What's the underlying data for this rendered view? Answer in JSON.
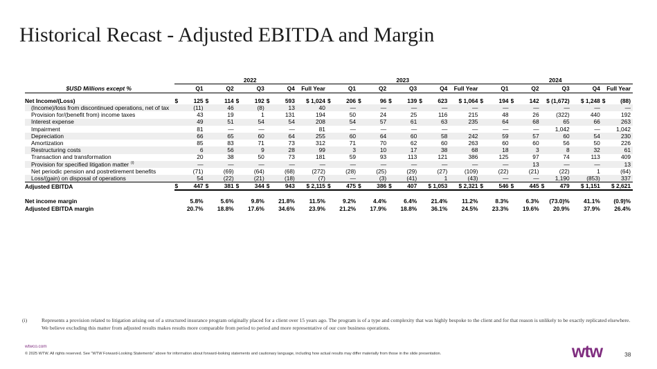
{
  "title": "Historical Recast - Adjusted EBITDA and Margin",
  "table": {
    "header_label": "$USD Millions except %",
    "years": [
      "2022",
      "2023",
      "2024"
    ],
    "quarters": [
      "Q1",
      "Q2",
      "Q3",
      "Q4",
      "Full Year",
      "Q1",
      "Q2",
      "Q3",
      "Q4",
      "Full Year",
      "Q1",
      "Q2",
      "Q3",
      "Q4",
      "Full Year"
    ],
    "rows": [
      {
        "label": "Net Income/(Loss)",
        "values": [
          "$|125",
          "$|114",
          "$|192",
          "$|593",
          "$ 1,024",
          "$|206",
          "$|96",
          "$|139",
          "$|623",
          "$ 1,064",
          "$|194",
          "$|142",
          "$ (1,672)",
          "$ 1,248",
          "$|(88)"
        ]
      },
      {
        "label": "(Income)/loss from discontinued operations, net of tax",
        "values": [
          "(11)",
          "46",
          "(8)",
          "13",
          "40",
          "—",
          "—",
          "—",
          "—",
          "—",
          "—",
          "—",
          "—",
          "—",
          "—"
        ]
      },
      {
        "label": "Provision for/(benefit from) income taxes",
        "values": [
          "43",
          "19",
          "1",
          "131",
          "194",
          "50",
          "24",
          "25",
          "116",
          "215",
          "48",
          "26",
          "(322)",
          "440",
          "192"
        ]
      },
      {
        "label": "Interest expense",
        "values": [
          "49",
          "51",
          "54",
          "54",
          "208",
          "54",
          "57",
          "61",
          "63",
          "235",
          "64",
          "68",
          "65",
          "66",
          "263"
        ]
      },
      {
        "label": "Impairment",
        "values": [
          "81",
          "—",
          "—",
          "—",
          "81",
          "—",
          "—",
          "—",
          "—",
          "—",
          "—",
          "—",
          "1,042",
          "—",
          "1,042"
        ]
      },
      {
        "label": "Depreciation",
        "values": [
          "66",
          "65",
          "60",
          "64",
          "255",
          "60",
          "64",
          "60",
          "58",
          "242",
          "59",
          "57",
          "60",
          "54",
          "230"
        ]
      },
      {
        "label": "Amortization",
        "values": [
          "85",
          "83",
          "71",
          "73",
          "312",
          "71",
          "70",
          "62",
          "60",
          "263",
          "60",
          "60",
          "56",
          "50",
          "226"
        ]
      },
      {
        "label": "Restructuring costs",
        "values": [
          "6",
          "56",
          "9",
          "28",
          "99",
          "3",
          "10",
          "17",
          "38",
          "68",
          "18",
          "3",
          "8",
          "32",
          "61"
        ]
      },
      {
        "label": "Transaction and transformation",
        "values": [
          "20",
          "38",
          "50",
          "73",
          "181",
          "59",
          "93",
          "113",
          "121",
          "386",
          "125",
          "97",
          "74",
          "113",
          "409"
        ]
      },
      {
        "label": "Provision for specified litigation matter",
        "footnote_mark": "(i)",
        "values": [
          "—",
          "—",
          "—",
          "—",
          "—",
          "—",
          "—",
          "—",
          "—",
          "—",
          "—",
          "13",
          "—",
          "—",
          "13"
        ]
      },
      {
        "label": "Net periodic pension and postretirement benefits",
        "values": [
          "(71)",
          "(69)",
          "(64)",
          "(68)",
          "(272)",
          "(28)",
          "(25)",
          "(29)",
          "(27)",
          "(109)",
          "(22)",
          "(21)",
          "(22)",
          "1",
          "(64)"
        ]
      },
      {
        "label": "Loss/(gain) on disposal of operations",
        "values": [
          "54",
          "(22)",
          "(21)",
          "(18)",
          "(7)",
          "—",
          "(3)",
          "(41)",
          "1",
          "(43)",
          "—",
          "—",
          "1,190",
          "(853)",
          "337"
        ]
      },
      {
        "label": "Adjusted EBITDA",
        "values": [
          "$|447",
          "$|381",
          "$|344",
          "$|943",
          "$ 2,115",
          "$|475",
          "$|386",
          "$|407",
          "$ 1,053",
          "$ 2,321",
          "$|546",
          "$|445",
          "$|479",
          "$ 1,151",
          "$ 2,621"
        ]
      },
      {
        "label": "Net income margin",
        "values": [
          "5.8%",
          "5.6%",
          "9.8%",
          "21.8%",
          "11.5%",
          "9.2%",
          "4.4%",
          "6.4%",
          "21.4%",
          "11.2%",
          "8.3%",
          "6.3%",
          "(73.0)%",
          "41.1%",
          "(0.9)%"
        ]
      },
      {
        "label": "Adjusted EBITDA margin",
        "values": [
          "20.7%",
          "18.8%",
          "17.6%",
          "34.6%",
          "23.9%",
          "21.2%",
          "17.9%",
          "18.8%",
          "36.1%",
          "24.5%",
          "23.3%",
          "19.6%",
          "20.9%",
          "37.9%",
          "26.4%"
        ]
      }
    ]
  },
  "footnote": {
    "marker": "(i)",
    "text": "Represents a provision related to litigation arising out of a structured insurance program originally placed for a client over 15 years ago. The program is of a type and complexity that was highly bespoke to the client and for that reason is unlikely to be exactly replicated elsewhere. We believe excluding this matter from adjusted results makes results more comparable from period to period and more representative of our core business operations."
  },
  "footer": {
    "url": "wtwco.com",
    "copyright": "© 2025 WTW. All rights reserved. See \"WTW Forward-Looking Statements\" above for information about forward-looking statements and cautionary language, including how actual results may differ materially from those in the slide presentation.",
    "logo_text": "wtw",
    "page_number": "38"
  },
  "colors": {
    "brand": "#7f2d7f",
    "shade": "#eeeeee"
  }
}
